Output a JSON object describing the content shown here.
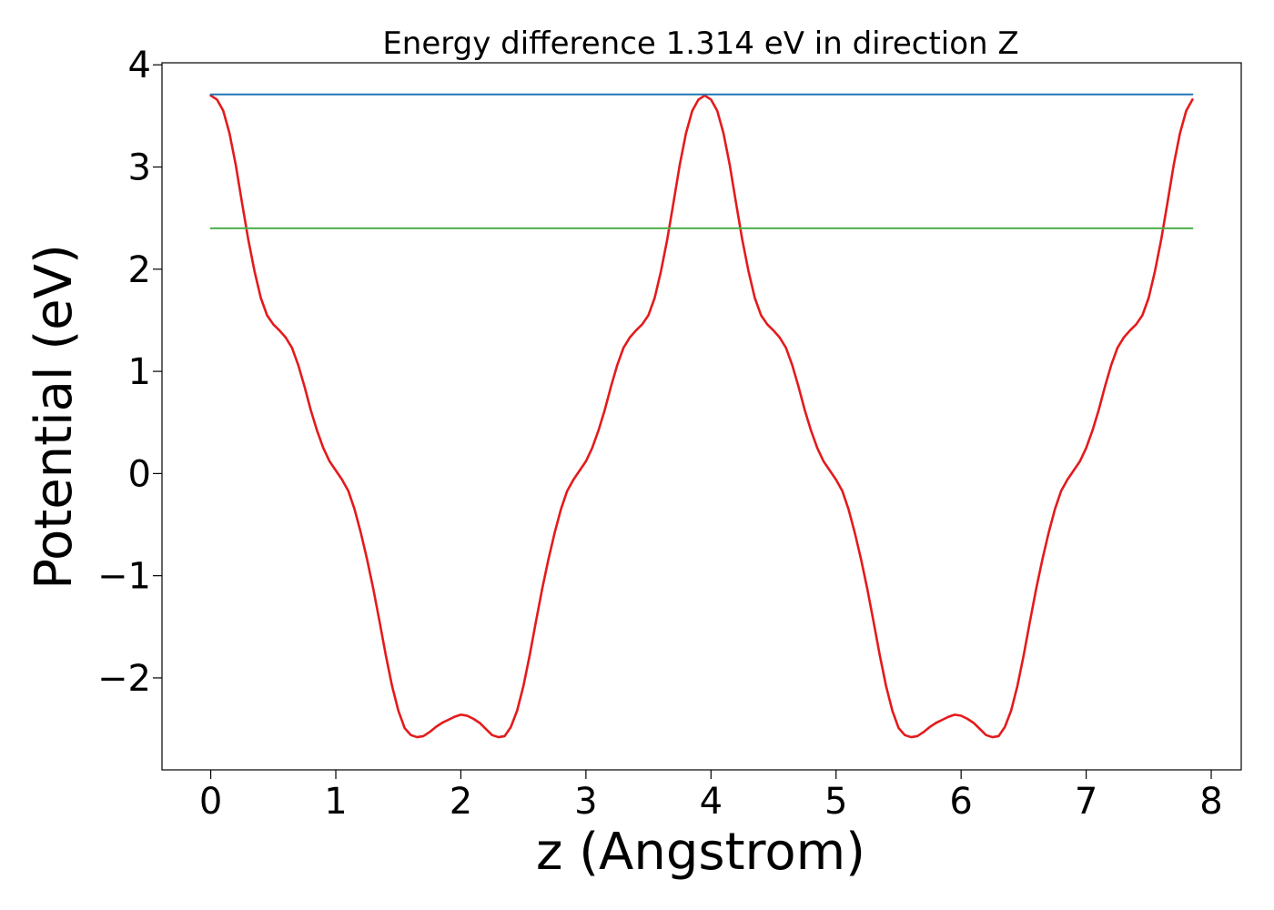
{
  "chart_data": {
    "type": "line",
    "title": "Energy difference 1.314 eV in direction Z",
    "xlabel": "z (Angstrom)",
    "ylabel": "Potential (eV)",
    "xlim": [
      -0.39,
      8.24
    ],
    "ylim": [
      -2.9,
      4.02
    ],
    "xticks": [
      0,
      1,
      2,
      3,
      4,
      5,
      6,
      7,
      8
    ],
    "xtick_labels": [
      "0",
      "1",
      "2",
      "3",
      "4",
      "5",
      "6",
      "7",
      "8"
    ],
    "yticks": [
      -2,
      -1,
      0,
      1,
      2,
      3,
      4
    ],
    "ytick_labels": [
      "−2",
      "−1",
      "0",
      "1",
      "2",
      "3",
      "4"
    ],
    "grid": false,
    "series": [
      {
        "color": "#e41a1c",
        "x": [
          0.0,
          0.05,
          0.1,
          0.15,
          0.2,
          0.25,
          0.3,
          0.35,
          0.4,
          0.45,
          0.5,
          0.55,
          0.6,
          0.65,
          0.7,
          0.75,
          0.8,
          0.85,
          0.9,
          0.95,
          1.0,
          1.05,
          1.1,
          1.15,
          1.2,
          1.25,
          1.3,
          1.35,
          1.4,
          1.45,
          1.5,
          1.55,
          1.6,
          1.65,
          1.7,
          1.75,
          1.8,
          1.85,
          1.9,
          1.95,
          2.0,
          2.05,
          2.1,
          2.15,
          2.2,
          2.25,
          2.3,
          2.35,
          2.4,
          2.45,
          2.5,
          2.55,
          2.6,
          2.65,
          2.7,
          2.75,
          2.8,
          2.85,
          2.9,
          2.95,
          3.0,
          3.05,
          3.1,
          3.15,
          3.2,
          3.25,
          3.3,
          3.35,
          3.4,
          3.45,
          3.5,
          3.55,
          3.6,
          3.65,
          3.7,
          3.75,
          3.8,
          3.85,
          3.9,
          3.95,
          4.0,
          4.05,
          4.1,
          4.15,
          4.2,
          4.25,
          4.3,
          4.35,
          4.4,
          4.45,
          4.5,
          4.55,
          4.6,
          4.65,
          4.7,
          4.75,
          4.8,
          4.85,
          4.9,
          4.95,
          5.0,
          5.05,
          5.1,
          5.15,
          5.2,
          5.25,
          5.3,
          5.35,
          5.4,
          5.45,
          5.5,
          5.55,
          5.6,
          5.65,
          5.7,
          5.75,
          5.8,
          5.85,
          5.9,
          5.95,
          6.0,
          6.05,
          6.1,
          6.15,
          6.2,
          6.25,
          6.3,
          6.35,
          6.4,
          6.45,
          6.5,
          6.55,
          6.6,
          6.65,
          6.7,
          6.75,
          6.8,
          6.85,
          6.9,
          6.95,
          7.0,
          7.05,
          7.1,
          7.15,
          7.2,
          7.25,
          7.3,
          7.35,
          7.4,
          7.45,
          7.5,
          7.55,
          7.6,
          7.65,
          7.7,
          7.75,
          7.8,
          7.85
        ],
        "y": [
          3.7,
          3.66,
          3.55,
          3.33,
          3.02,
          2.65,
          2.29,
          1.98,
          1.72,
          1.55,
          1.46,
          1.4,
          1.33,
          1.23,
          1.06,
          0.85,
          0.62,
          0.42,
          0.25,
          0.12,
          0.03,
          -0.06,
          -0.17,
          -0.35,
          -0.58,
          -0.84,
          -1.13,
          -1.45,
          -1.78,
          -2.08,
          -2.32,
          -2.49,
          -2.56,
          -2.58,
          -2.57,
          -2.53,
          -2.48,
          -2.44,
          -2.41,
          -2.38,
          -2.36,
          -2.37,
          -2.4,
          -2.44,
          -2.5,
          -2.56,
          -2.58,
          -2.57,
          -2.48,
          -2.32,
          -2.08,
          -1.78,
          -1.45,
          -1.13,
          -0.84,
          -0.58,
          -0.35,
          -0.17,
          -0.06,
          0.03,
          0.12,
          0.25,
          0.42,
          0.62,
          0.85,
          1.06,
          1.23,
          1.33,
          1.4,
          1.46,
          1.55,
          1.72,
          1.98,
          2.29,
          2.65,
          3.02,
          3.33,
          3.55,
          3.66,
          3.7,
          3.66,
          3.55,
          3.33,
          3.02,
          2.65,
          2.29,
          1.98,
          1.72,
          1.55,
          1.46,
          1.4,
          1.33,
          1.23,
          1.06,
          0.85,
          0.62,
          0.42,
          0.25,
          0.12,
          0.03,
          -0.06,
          -0.17,
          -0.35,
          -0.58,
          -0.84,
          -1.13,
          -1.45,
          -1.78,
          -2.08,
          -2.32,
          -2.49,
          -2.56,
          -2.58,
          -2.57,
          -2.53,
          -2.48,
          -2.44,
          -2.41,
          -2.38,
          -2.36,
          -2.37,
          -2.4,
          -2.44,
          -2.5,
          -2.56,
          -2.58,
          -2.57,
          -2.48,
          -2.32,
          -2.08,
          -1.78,
          -1.45,
          -1.13,
          -0.84,
          -0.58,
          -0.35,
          -0.17,
          -0.06,
          0.03,
          0.12,
          0.25,
          0.42,
          0.62,
          0.85,
          1.06,
          1.23,
          1.33,
          1.4,
          1.46,
          1.55,
          1.72,
          1.98,
          2.29,
          2.65,
          3.02,
          3.33,
          3.55,
          3.66
        ]
      },
      {
        "color": "#1f77b4",
        "x": [
          0.0,
          7.85
        ],
        "y": [
          3.71,
          3.71
        ]
      },
      {
        "color": "#4daf4a",
        "x": [
          0.0,
          7.85
        ],
        "y": [
          2.4,
          2.4
        ]
      }
    ]
  }
}
